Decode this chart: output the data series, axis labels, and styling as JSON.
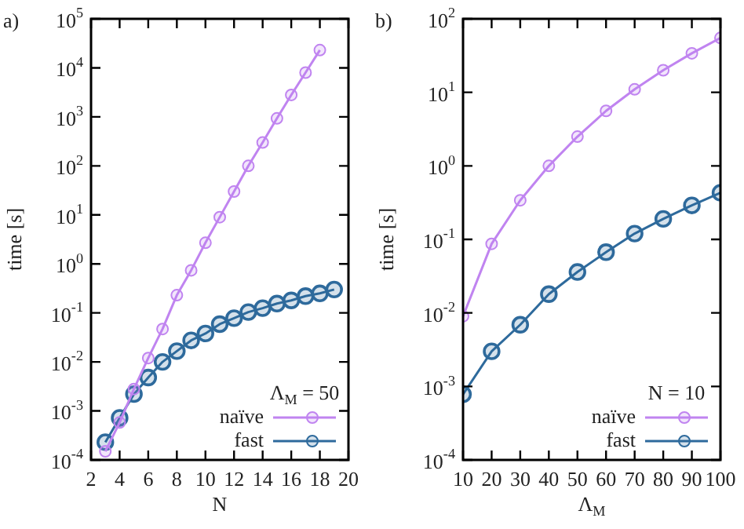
{
  "chart_data": [
    {
      "type": "line",
      "annotations": [
        "a)"
      ],
      "xlabel": "N",
      "ylabel": "time [s]",
      "legend_title": "Λ$_{M}$ = 50",
      "legend": "bottom right",
      "marker": "circle",
      "log": "y",
      "xlim": [
        2,
        20
      ],
      "xticks": [
        2,
        4,
        6,
        8,
        10,
        12,
        14,
        16,
        18,
        20
      ],
      "ylim": [
        0.0001,
        100000
      ],
      "yticks": [
        {
          "value": 0.0001,
          "label": "10$^{-4}$"
        },
        {
          "value": 0.001,
          "label": "10$^{-3}$"
        },
        {
          "value": 0.01,
          "label": "10$^{-2}$"
        },
        {
          "value": 0.1,
          "label": "10$^{-1}$"
        },
        {
          "value": 1,
          "label": "10$^{0}$"
        },
        {
          "value": 10,
          "label": "10$^{1}$"
        },
        {
          "value": 100,
          "label": "10$^{2}$"
        },
        {
          "value": 1000,
          "label": "10$^{3}$"
        },
        {
          "value": 10000,
          "label": "10$^{4}$"
        },
        {
          "value": 100000,
          "label": "10$^{5}$"
        }
      ],
      "series": [
        {
          "name": "naïve",
          "color": "#c084f0",
          "x": [
            3,
            4,
            5,
            6,
            7,
            8,
            9,
            10,
            11,
            12,
            13,
            14,
            15,
            16,
            17,
            18
          ],
          "values": [
            0.00015,
            0.00058,
            0.0028,
            0.012,
            0.047,
            0.23,
            0.74,
            2.7,
            9,
            30,
            100,
            300,
            930,
            2800,
            8000,
            23000
          ]
        },
        {
          "name": "fast",
          "color": "#2e6a9c",
          "x": [
            3,
            4,
            5,
            6,
            7,
            8,
            9,
            10,
            11,
            12,
            13,
            14,
            15,
            16,
            17,
            18,
            19
          ],
          "values": [
            0.00023,
            0.00072,
            0.0022,
            0.0048,
            0.01,
            0.0166,
            0.0275,
            0.038,
            0.059,
            0.078,
            0.104,
            0.125,
            0.155,
            0.18,
            0.22,
            0.25,
            0.3
          ]
        }
      ]
    },
    {
      "type": "line",
      "annotations": [
        "b)"
      ],
      "xlabel": "Λ$_{M}$",
      "ylabel": "time [s]",
      "legend_title": "N = 10",
      "legend": "bottom right",
      "marker": "circle",
      "log": "y",
      "xlim": [
        10,
        100
      ],
      "xticks": [
        10,
        20,
        30,
        40,
        50,
        60,
        70,
        80,
        90,
        100
      ],
      "ylim": [
        0.0001,
        100
      ],
      "yticks": [
        {
          "value": 0.0001,
          "label": "10$^{-4}$"
        },
        {
          "value": 0.001,
          "label": "10$^{-3}$"
        },
        {
          "value": 0.01,
          "label": "10$^{-2}$"
        },
        {
          "value": 0.1,
          "label": "10$^{-1}$"
        },
        {
          "value": 1,
          "label": "10$^{0}$"
        },
        {
          "value": 10,
          "label": "10$^{1}$"
        },
        {
          "value": 100,
          "label": "10$^{2}$"
        }
      ],
      "series": [
        {
          "name": "naïve",
          "color": "#c084f0",
          "x": [
            10,
            20,
            30,
            40,
            50,
            60,
            70,
            80,
            90,
            100
          ],
          "values": [
            0.009,
            0.087,
            0.34,
            1,
            2.5,
            5.6,
            11,
            20,
            34,
            55
          ]
        },
        {
          "name": "fast",
          "color": "#2e6a9c",
          "x": [
            10,
            20,
            30,
            40,
            50,
            60,
            70,
            80,
            90,
            100
          ],
          "values": [
            0.00078,
            0.003,
            0.0069,
            0.018,
            0.036,
            0.067,
            0.12,
            0.19,
            0.29,
            0.43
          ]
        }
      ]
    }
  ]
}
